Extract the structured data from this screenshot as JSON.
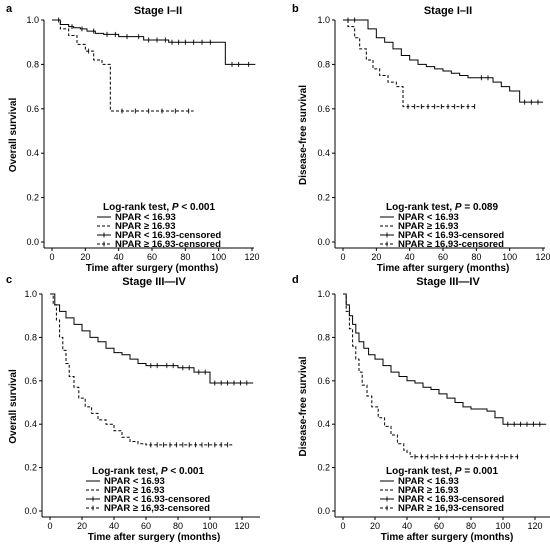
{
  "chart_data": [
    {
      "panel": "a",
      "title": "Stage I–II",
      "type": "line",
      "xlabel": "Time after surgery (months)",
      "ylabel": "Overall survival",
      "xlim": [
        0,
        120
      ],
      "ylim": [
        0.0,
        1.0
      ],
      "xticks": [
        "0",
        "20",
        "40",
        "60",
        "80",
        "100",
        "120"
      ],
      "yticks": [
        "0.0",
        "0.2",
        "0.4",
        "0.6",
        "0.8",
        "1.0"
      ],
      "legend_title": [
        "Log-rank test, ",
        "P",
        " < 0.001"
      ],
      "legend": [
        "NPAR < 16.93",
        "NPAR ≥ 16.93",
        "NPAR < 16.93-censored",
        "NPAR ≥ 16,93-censored"
      ],
      "series": [
        {
          "dash": "solid",
          "x": [
            0,
            5,
            10,
            13,
            17,
            21,
            26,
            31,
            40,
            55,
            70,
            100,
            104,
            122
          ],
          "y": [
            1.0,
            0.98,
            0.97,
            0.965,
            0.96,
            0.95,
            0.94,
            0.935,
            0.925,
            0.91,
            0.9,
            0.9,
            0.8,
            0.8
          ],
          "censor_x": [
            4,
            12,
            18,
            25,
            33,
            38,
            45,
            52,
            58,
            63,
            68,
            72,
            76,
            80,
            85,
            90,
            95,
            108,
            112,
            118
          ]
        },
        {
          "dash": "dashed",
          "x": [
            0,
            5,
            10,
            15,
            20,
            25,
            30,
            35,
            85
          ],
          "y": [
            1.0,
            0.96,
            0.93,
            0.89,
            0.86,
            0.82,
            0.8,
            0.59,
            0.59
          ],
          "censor_x": [
            22,
            42,
            50,
            58,
            66,
            74,
            82
          ]
        }
      ]
    },
    {
      "panel": "b",
      "title": "Stage I–II",
      "type": "line",
      "xlabel": "Time after surgery (months)",
      "ylabel": "Disease-free survival",
      "xlim": [
        0,
        120
      ],
      "ylim": [
        0.0,
        1.0
      ],
      "xticks": [
        "0",
        "20",
        "40",
        "60",
        "80",
        "100",
        "120"
      ],
      "yticks": [
        "0.0",
        "0.2",
        "0.4",
        "0.6",
        "0.8",
        "1.0"
      ],
      "legend_title": [
        "Log-rank test, ",
        "P",
        " = 0.089"
      ],
      "legend": [
        "NPAR < 16.93",
        "NPAR ≥ 16.93",
        "NPAR < 16.93-censored",
        "NPAR ≥ 16,93-censored"
      ],
      "series": [
        {
          "dash": "solid",
          "x": [
            0,
            10,
            15,
            20,
            25,
            30,
            35,
            40,
            45,
            50,
            55,
            60,
            65,
            70,
            75,
            80,
            90,
            95,
            100,
            106,
            120
          ],
          "y": [
            1.0,
            1.0,
            0.96,
            0.92,
            0.9,
            0.87,
            0.84,
            0.82,
            0.8,
            0.79,
            0.78,
            0.77,
            0.76,
            0.75,
            0.74,
            0.74,
            0.72,
            0.7,
            0.68,
            0.63,
            0.63
          ]
        },
        {
          "dash": "dashed",
          "x": [
            0,
            3,
            7,
            10,
            14,
            18,
            22,
            27,
            32,
            36,
            80
          ],
          "y": [
            1.0,
            0.97,
            0.92,
            0.87,
            0.82,
            0.78,
            0.75,
            0.72,
            0.7,
            0.61,
            0.61
          ]
        }
      ]
    },
    {
      "panel": "c",
      "title": "Stage III—IV",
      "type": "line",
      "xlabel": "Time after surgery (months)",
      "ylabel": "Overall survival",
      "xlim": [
        0,
        130
      ],
      "ylim": [
        0.0,
        1.0
      ],
      "xticks": [
        "0",
        "20",
        "40",
        "60",
        "80",
        "100",
        "120"
      ],
      "yticks": [
        "0.0",
        "0.2",
        "0.4",
        "0.6",
        "0.8",
        "1.0"
      ],
      "legend_title": [
        "Log-rank test, ",
        "P",
        " < 0.001"
      ],
      "legend": [
        "NPAR < 16.93",
        "NPAR ≥ 16.93",
        "NPAR < 16.93-censored",
        "NPAR ≥ 16,93-censored"
      ],
      "series": [
        {
          "dash": "solid",
          "x": [
            0,
            3,
            6,
            10,
            15,
            20,
            25,
            30,
            35,
            40,
            45,
            50,
            55,
            60,
            70,
            80,
            90,
            100,
            127
          ],
          "y": [
            1.0,
            0.95,
            0.92,
            0.89,
            0.86,
            0.83,
            0.8,
            0.78,
            0.75,
            0.73,
            0.72,
            0.7,
            0.68,
            0.67,
            0.67,
            0.66,
            0.64,
            0.59,
            0.59
          ]
        },
        {
          "dash": "dashed",
          "x": [
            0,
            2,
            4,
            6,
            8,
            10,
            12,
            15,
            18,
            22,
            26,
            30,
            35,
            40,
            45,
            50,
            55,
            60,
            115
          ],
          "y": [
            1.0,
            0.95,
            0.88,
            0.8,
            0.74,
            0.68,
            0.62,
            0.57,
            0.52,
            0.48,
            0.45,
            0.42,
            0.4,
            0.37,
            0.34,
            0.32,
            0.31,
            0.305,
            0.305
          ]
        }
      ]
    },
    {
      "panel": "d",
      "title": "Stage III—IV",
      "type": "line",
      "xlabel": "Time after surgery (months)",
      "ylabel": "Disease-free survival",
      "xlim": [
        0,
        130
      ],
      "ylim": [
        0.0,
        1.0
      ],
      "xticks": [
        "0",
        "20",
        "40",
        "60",
        "80",
        "100",
        "120"
      ],
      "yticks": [
        "0.0",
        "0.2",
        "0.4",
        "0.6",
        "0.8",
        "1.0"
      ],
      "legend_title": [
        "Log-rank test, ",
        "P",
        " = 0.001"
      ],
      "legend": [
        "NPAR < 16.93",
        "NPAR ≥ 16.93",
        "NPAR < 16.93-censored",
        "NPAR ≥ 16,93-censored"
      ],
      "series": [
        {
          "dash": "solid",
          "x": [
            0,
            2,
            4,
            6,
            8,
            10,
            13,
            16,
            20,
            25,
            30,
            35,
            40,
            45,
            50,
            55,
            60,
            65,
            70,
            75,
            80,
            85,
            90,
            95,
            100,
            127
          ],
          "y": [
            1.0,
            0.95,
            0.9,
            0.86,
            0.82,
            0.78,
            0.75,
            0.72,
            0.7,
            0.67,
            0.64,
            0.62,
            0.6,
            0.59,
            0.57,
            0.56,
            0.54,
            0.52,
            0.5,
            0.48,
            0.47,
            0.47,
            0.46,
            0.43,
            0.4,
            0.4
          ]
        },
        {
          "dash": "dashed",
          "x": [
            0,
            2,
            4,
            6,
            8,
            10,
            12,
            15,
            18,
            22,
            26,
            30,
            34,
            38,
            40,
            42,
            110
          ],
          "y": [
            1.0,
            0.92,
            0.84,
            0.76,
            0.7,
            0.64,
            0.58,
            0.53,
            0.48,
            0.43,
            0.39,
            0.35,
            0.31,
            0.28,
            0.27,
            0.25,
            0.25
          ]
        }
      ]
    }
  ]
}
